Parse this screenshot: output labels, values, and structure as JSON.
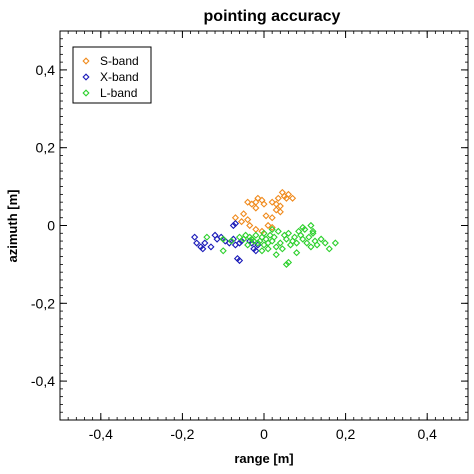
{
  "chart_data": {
    "type": "scatter",
    "title": "pointing accuracy",
    "xlabel": "range [m]",
    "ylabel": "azimuth [m]",
    "xlim": [
      -0.5,
      0.5
    ],
    "ylim": [
      -0.5,
      0.5
    ],
    "xticks": [
      -0.4,
      -0.2,
      0,
      0.2,
      0.4
    ],
    "xtick_labels": [
      "-0,4",
      "-0,2",
      "0",
      "0,2",
      "0,4"
    ],
    "yticks": [
      0.4,
      0.2,
      0,
      -0.2,
      -0.4
    ],
    "ytick_labels": [
      "0,4",
      "0,2",
      "0",
      "-0,2",
      "-0,4"
    ],
    "grid": false,
    "legend_position": "top-left",
    "marker": "diamond-open",
    "series": [
      {
        "name": "S-band",
        "color": "#f08a1c",
        "points": [
          [
            -0.07,
            0.02
          ],
          [
            -0.05,
            0.03
          ],
          [
            -0.04,
            0.06
          ],
          [
            -0.03,
            0.055
          ],
          [
            -0.02,
            0.06
          ],
          [
            -0.015,
            0.07
          ],
          [
            -0.005,
            0.065
          ],
          [
            0.0,
            0.055
          ],
          [
            0.02,
            0.06
          ],
          [
            0.03,
            0.055
          ],
          [
            0.035,
            0.07
          ],
          [
            0.04,
            0.05
          ],
          [
            0.045,
            0.085
          ],
          [
            0.05,
            0.075
          ],
          [
            0.055,
            0.07
          ],
          [
            0.06,
            0.08
          ],
          [
            0.07,
            0.07
          ],
          [
            0.03,
            0.04
          ],
          [
            0.04,
            0.035
          ],
          [
            -0.02,
            0.045
          ],
          [
            -0.055,
            0.01
          ],
          [
            -0.04,
            0.015
          ],
          [
            -0.035,
            0.0
          ],
          [
            -0.02,
            -0.01
          ],
          [
            0.01,
            0.0
          ],
          [
            0.02,
            -0.005
          ],
          [
            -0.005,
            -0.015
          ],
          [
            0.02,
            0.02
          ],
          [
            0.005,
            0.025
          ]
        ]
      },
      {
        "name": "X-band",
        "color": "#1a1ab8",
        "points": [
          [
            -0.17,
            -0.03
          ],
          [
            -0.165,
            -0.045
          ],
          [
            -0.155,
            -0.055
          ],
          [
            -0.15,
            -0.06
          ],
          [
            -0.145,
            -0.045
          ],
          [
            -0.13,
            -0.055
          ],
          [
            -0.12,
            -0.025
          ],
          [
            -0.115,
            -0.035
          ],
          [
            -0.105,
            -0.03
          ],
          [
            -0.095,
            -0.04
          ],
          [
            -0.085,
            -0.045
          ],
          [
            -0.075,
            -0.035
          ],
          [
            -0.07,
            -0.05
          ],
          [
            -0.06,
            -0.045
          ],
          [
            -0.055,
            -0.04
          ],
          [
            -0.065,
            -0.085
          ],
          [
            -0.06,
            -0.09
          ],
          [
            -0.075,
            0.0
          ],
          [
            -0.07,
            0.005
          ],
          [
            -0.035,
            -0.04
          ],
          [
            -0.025,
            -0.06
          ],
          [
            -0.02,
            -0.065
          ],
          [
            -0.015,
            -0.05
          ],
          [
            -0.03,
            -0.045
          ]
        ]
      },
      {
        "name": "L-band",
        "color": "#2cd02c",
        "points": [
          [
            -0.14,
            -0.03
          ],
          [
            -0.1,
            -0.035
          ],
          [
            -0.08,
            -0.04
          ],
          [
            -0.06,
            -0.03
          ],
          [
            -0.05,
            -0.035
          ],
          [
            -0.045,
            -0.025
          ],
          [
            -0.04,
            -0.05
          ],
          [
            -0.035,
            -0.03
          ],
          [
            -0.03,
            -0.035
          ],
          [
            -0.025,
            -0.04
          ],
          [
            -0.02,
            -0.025
          ],
          [
            -0.015,
            -0.045
          ],
          [
            -0.01,
            -0.04
          ],
          [
            -0.005,
            -0.03
          ],
          [
            0.0,
            -0.05
          ],
          [
            0.0,
            -0.02
          ],
          [
            0.005,
            -0.035
          ],
          [
            0.01,
            -0.045
          ],
          [
            0.015,
            -0.025
          ],
          [
            0.02,
            -0.04
          ],
          [
            0.025,
            -0.03
          ],
          [
            0.03,
            -0.055
          ],
          [
            0.035,
            -0.015
          ],
          [
            0.04,
            -0.045
          ],
          [
            0.045,
            -0.06
          ],
          [
            0.05,
            -0.025
          ],
          [
            0.055,
            -0.035
          ],
          [
            0.06,
            -0.02
          ],
          [
            0.065,
            -0.05
          ],
          [
            0.07,
            -0.04
          ],
          [
            0.075,
            -0.03
          ],
          [
            0.08,
            -0.045
          ],
          [
            0.085,
            -0.015
          ],
          [
            0.09,
            -0.025
          ],
          [
            0.095,
            -0.035
          ],
          [
            0.1,
            -0.01
          ],
          [
            0.105,
            -0.045
          ],
          [
            0.11,
            -0.03
          ],
          [
            0.115,
            -0.055
          ],
          [
            0.12,
            -0.02
          ],
          [
            0.125,
            -0.04
          ],
          [
            0.13,
            -0.05
          ],
          [
            0.14,
            -0.035
          ],
          [
            0.15,
            -0.045
          ],
          [
            0.16,
            -0.06
          ],
          [
            0.175,
            -0.045
          ],
          [
            0.055,
            -0.1
          ],
          [
            0.06,
            -0.095
          ],
          [
            0.08,
            -0.07
          ],
          [
            -0.1,
            -0.065
          ],
          [
            -0.005,
            -0.065
          ],
          [
            0.01,
            -0.06
          ],
          [
            0.02,
            -0.01
          ],
          [
            0.095,
            -0.005
          ],
          [
            0.115,
            0.0
          ],
          [
            0.12,
            -0.015
          ],
          [
            0.03,
            -0.075
          ]
        ]
      }
    ]
  }
}
